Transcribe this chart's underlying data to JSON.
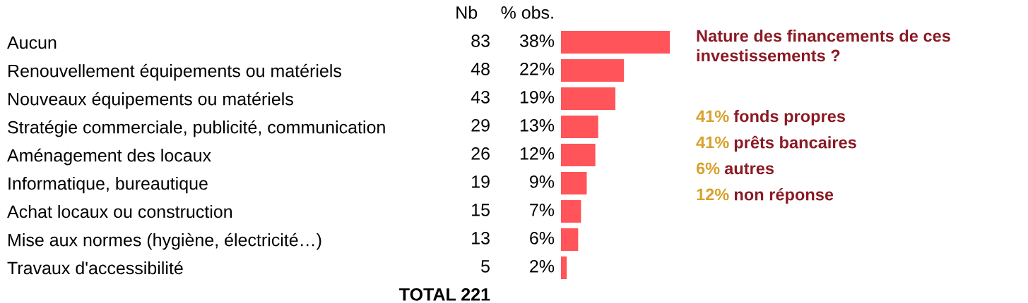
{
  "chart_data": [
    {
      "type": "bar",
      "orientation": "horizontal",
      "categories": [
        "Aucun",
        "Renouvellement équipements ou matériels",
        "Nouveaux équipements ou matériels",
        "Stratégie commerciale, publicité, communication",
        "Aménagement des locaux",
        "Informatique, bureautique",
        "Achat locaux ou construction",
        "Mise aux normes (hygiène, électricité…)",
        "Travaux d'accessibilité"
      ],
      "series": [
        {
          "name": "% obs.",
          "color": "#ff5459",
          "values": [
            38,
            22,
            19,
            13,
            12,
            9,
            7,
            6,
            2
          ],
          "value_labels": [
            "38%",
            "22%",
            "19%",
            "13%",
            "12%",
            "9%",
            "7%",
            "6%",
            "2%"
          ]
        }
      ],
      "legend": false,
      "tick_labels": "y"
    },
    {
      "type": "other",
      "title": "Nb",
      "values": [
        83,
        48,
        43,
        29,
        26,
        19,
        15,
        13,
        5
      ],
      "data_labels": true,
      "annotations": [
        "TOTAL 221"
      ]
    },
    {
      "type": "other",
      "title": "Nature des financements de ces investissements ?",
      "annotations": [
        "41% fonds propres",
        "41% prêts bancaires",
        "6% autres",
        "12% non réponse"
      ]
    }
  ]
}
